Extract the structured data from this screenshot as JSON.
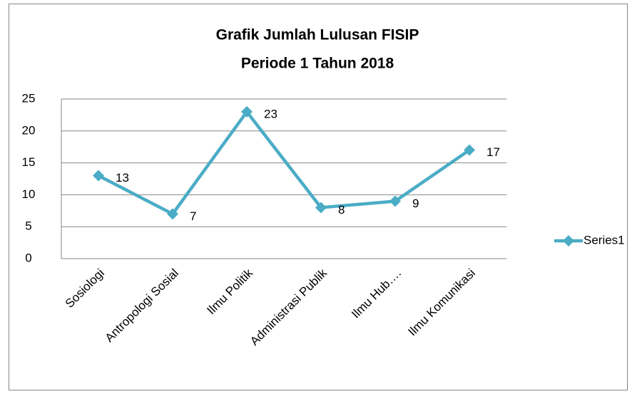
{
  "chart_data": {
    "type": "line",
    "title": [
      "Grafik Jumlah Lulusan FISIP",
      "Periode 1 Tahun 2018"
    ],
    "categories": [
      "Sosiologi",
      "Antropologi Sosial",
      "Ilmu Politik",
      "Administrasi Publik",
      "Ilmu Hub….",
      "Ilmu Komunikasi"
    ],
    "series": [
      {
        "name": "Series1",
        "color": "#4bacc6",
        "values": [
          13,
          7,
          23,
          8,
          9,
          17
        ]
      }
    ],
    "ylim": [
      0,
      25
    ],
    "yticks": [
      0,
      5,
      10,
      15,
      20,
      25
    ],
    "grid": true,
    "legend": "right",
    "data_labels": true
  }
}
